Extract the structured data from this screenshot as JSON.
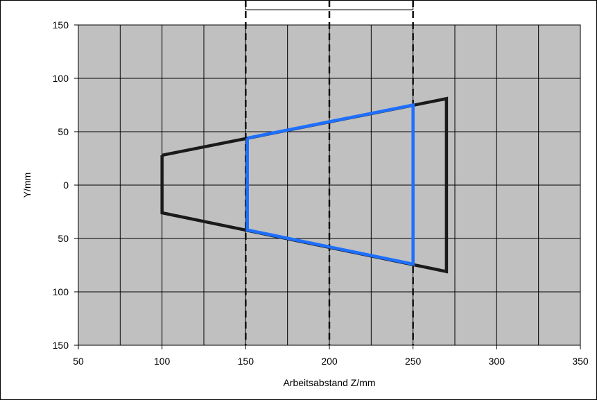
{
  "chart_data": {
    "type": "line",
    "xlabel": "Arbeitsabstand Z/mm",
    "ylabel": "Y/mm",
    "xlim": [
      50,
      350
    ],
    "ylim": [
      -150,
      150
    ],
    "x_ticks": [
      50,
      100,
      150,
      200,
      250,
      300,
      350
    ],
    "x_tick_labels": [
      "50",
      "100",
      "150",
      "200",
      "250",
      "300",
      "350"
    ],
    "y_ticks": [
      150,
      100,
      50,
      0,
      -50,
      -100,
      -150
    ],
    "y_tick_labels": [
      "150",
      "100",
      "50",
      "0",
      "50",
      "100",
      "150"
    ],
    "grid": true,
    "x_minor_step": 25,
    "y_minor_step": 50,
    "plot_background": "#c0c0c0",
    "dashed_vertical_lines_x": [
      150,
      200,
      250
    ],
    "series": [
      {
        "color": "#1a1a1a",
        "points": [
          [
            100,
            28
          ],
          [
            270,
            81
          ],
          [
            270,
            -81
          ],
          [
            100,
            -26
          ],
          [
            100,
            28
          ]
        ]
      },
      {
        "color": "#1f6fff",
        "points": [
          [
            151,
            44
          ],
          [
            250,
            75
          ],
          [
            250,
            -74
          ],
          [
            151,
            -42
          ],
          [
            151,
            44
          ]
        ]
      }
    ]
  }
}
